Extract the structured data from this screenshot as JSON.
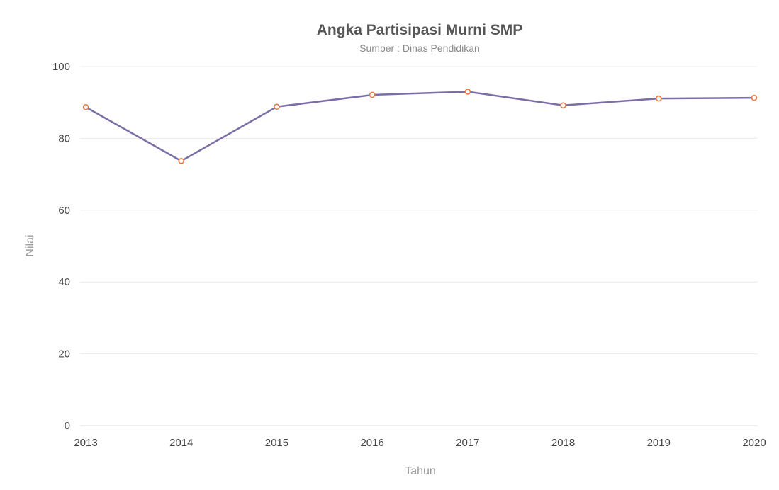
{
  "chart_data": {
    "type": "line",
    "title": "Angka Partisipasi Murni SMP",
    "subtitle": "Sumber : Dinas Pendidikan",
    "xlabel": "Tahun",
    "ylabel": "Nilai",
    "categories": [
      "2013",
      "2014",
      "2015",
      "2016",
      "2017",
      "2018",
      "2019",
      "2020"
    ],
    "ylim": [
      0,
      100
    ],
    "yticks": [
      0,
      20,
      40,
      60,
      80,
      100
    ],
    "grid": true,
    "legend": "none",
    "series": [
      {
        "values": [
          88.7,
          73.7,
          88.8,
          92.1,
          93.0,
          89.2,
          91.1,
          91.3
        ],
        "color": "#7b6ea6",
        "marker_color": "#e8743b"
      }
    ]
  }
}
